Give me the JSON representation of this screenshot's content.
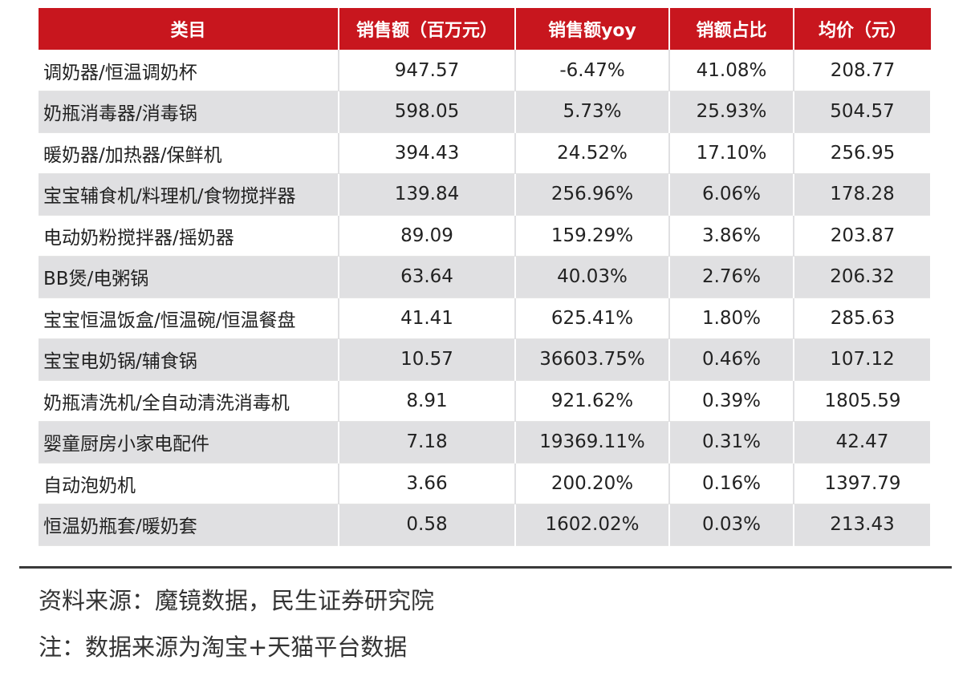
{
  "table": {
    "headers": [
      "类目",
      "销售额（百万元）",
      "销售额yoy",
      "销额占比",
      "均价（元）"
    ],
    "rows": [
      [
        "调奶器/恒温调奶杯",
        "947.57",
        "-6.47%",
        "41.08%",
        "208.77"
      ],
      [
        "奶瓶消毒器/消毒锅",
        "598.05",
        "5.73%",
        "25.93%",
        "504.57"
      ],
      [
        "暖奶器/加热器/保鲜机",
        "394.43",
        "24.52%",
        "17.10%",
        "256.95"
      ],
      [
        "宝宝辅食机/料理机/食物搅拌器",
        "139.84",
        "256.96%",
        "6.06%",
        "178.28"
      ],
      [
        "电动奶粉搅拌器/摇奶器",
        "89.09",
        "159.29%",
        "3.86%",
        "203.87"
      ],
      [
        "BB煲/电粥锅",
        "63.64",
        "40.03%",
        "2.76%",
        "206.32"
      ],
      [
        "宝宝恒温饭盒/恒温碗/恒温餐盘",
        "41.41",
        "625.41%",
        "1.80%",
        "285.63"
      ],
      [
        "宝宝电奶锅/辅食锅",
        "10.57",
        "36603.75%",
        "0.46%",
        "107.12"
      ],
      [
        "奶瓶清洗机/全自动清洗消毒机",
        "8.91",
        "921.62%",
        "0.39%",
        "1805.59"
      ],
      [
        "婴童厨房小家电配件",
        "7.18",
        "19369.11%",
        "0.31%",
        "42.47"
      ],
      [
        "自动泡奶机",
        "3.66",
        "200.20%",
        "0.16%",
        "1397.79"
      ],
      [
        "恒温奶瓶套/暖奶套",
        "0.58",
        "1602.02%",
        "0.03%",
        "213.43"
      ]
    ]
  },
  "footer": {
    "source": "资料来源：魔镜数据，民生证券研究院",
    "note": "注：数据来源为淘宝+天猫平台数据"
  },
  "colors": {
    "header_bg": "#c8161e",
    "header_text": "#ffffff",
    "stripe": "#e0e0e2"
  }
}
